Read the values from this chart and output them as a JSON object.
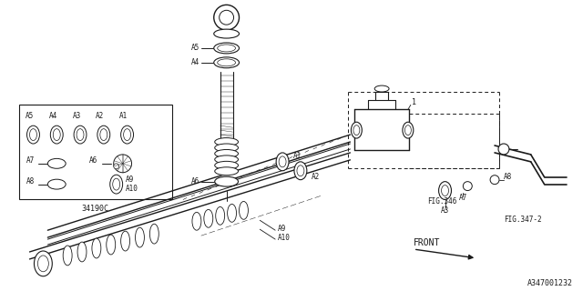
{
  "bg_color": "#ffffff",
  "line_color": "#1a1a1a",
  "part_id": "A347001232",
  "kit_id": "34190C",
  "fig_ref1": "FIG.346",
  "fig_ref2": "FIG.347-2",
  "front_label": "FRONT"
}
